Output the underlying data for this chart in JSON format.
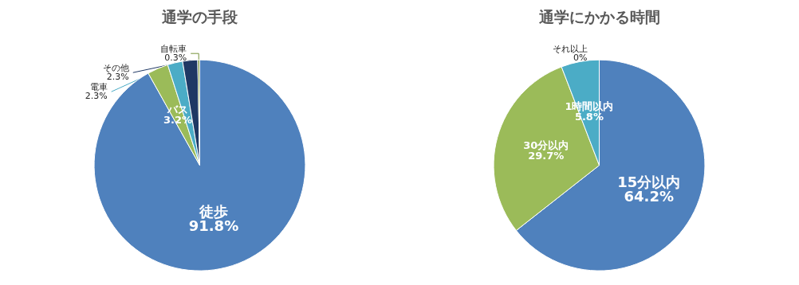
{
  "chart_data": [
    {
      "type": "pie",
      "title": "通学の手段",
      "categories": [
        "徒歩",
        "バス",
        "電車",
        "その他",
        "自転車"
      ],
      "values": [
        91.8,
        3.2,
        2.3,
        2.3,
        0.3
      ],
      "colors": [
        "#4f81bd",
        "#9bbb59",
        "#4bacc6",
        "#1f3864",
        "#77933c"
      ],
      "value_labels": [
        "91.8%",
        "3.2%",
        "2.3%",
        "2.3%",
        "0.3%"
      ],
      "legend": false
    },
    {
      "type": "pie",
      "title": "通学にかかる時間",
      "categories": [
        "15分以内",
        "30分以内",
        "1時間以内",
        "それ以上"
      ],
      "values": [
        64.2,
        29.7,
        5.8,
        0
      ],
      "colors": [
        "#4f81bd",
        "#9bbb59",
        "#4bacc6",
        "#1f3864"
      ],
      "value_labels": [
        "64.2%",
        "29.7%",
        "5.8%",
        "0%"
      ],
      "legend": false
    }
  ]
}
